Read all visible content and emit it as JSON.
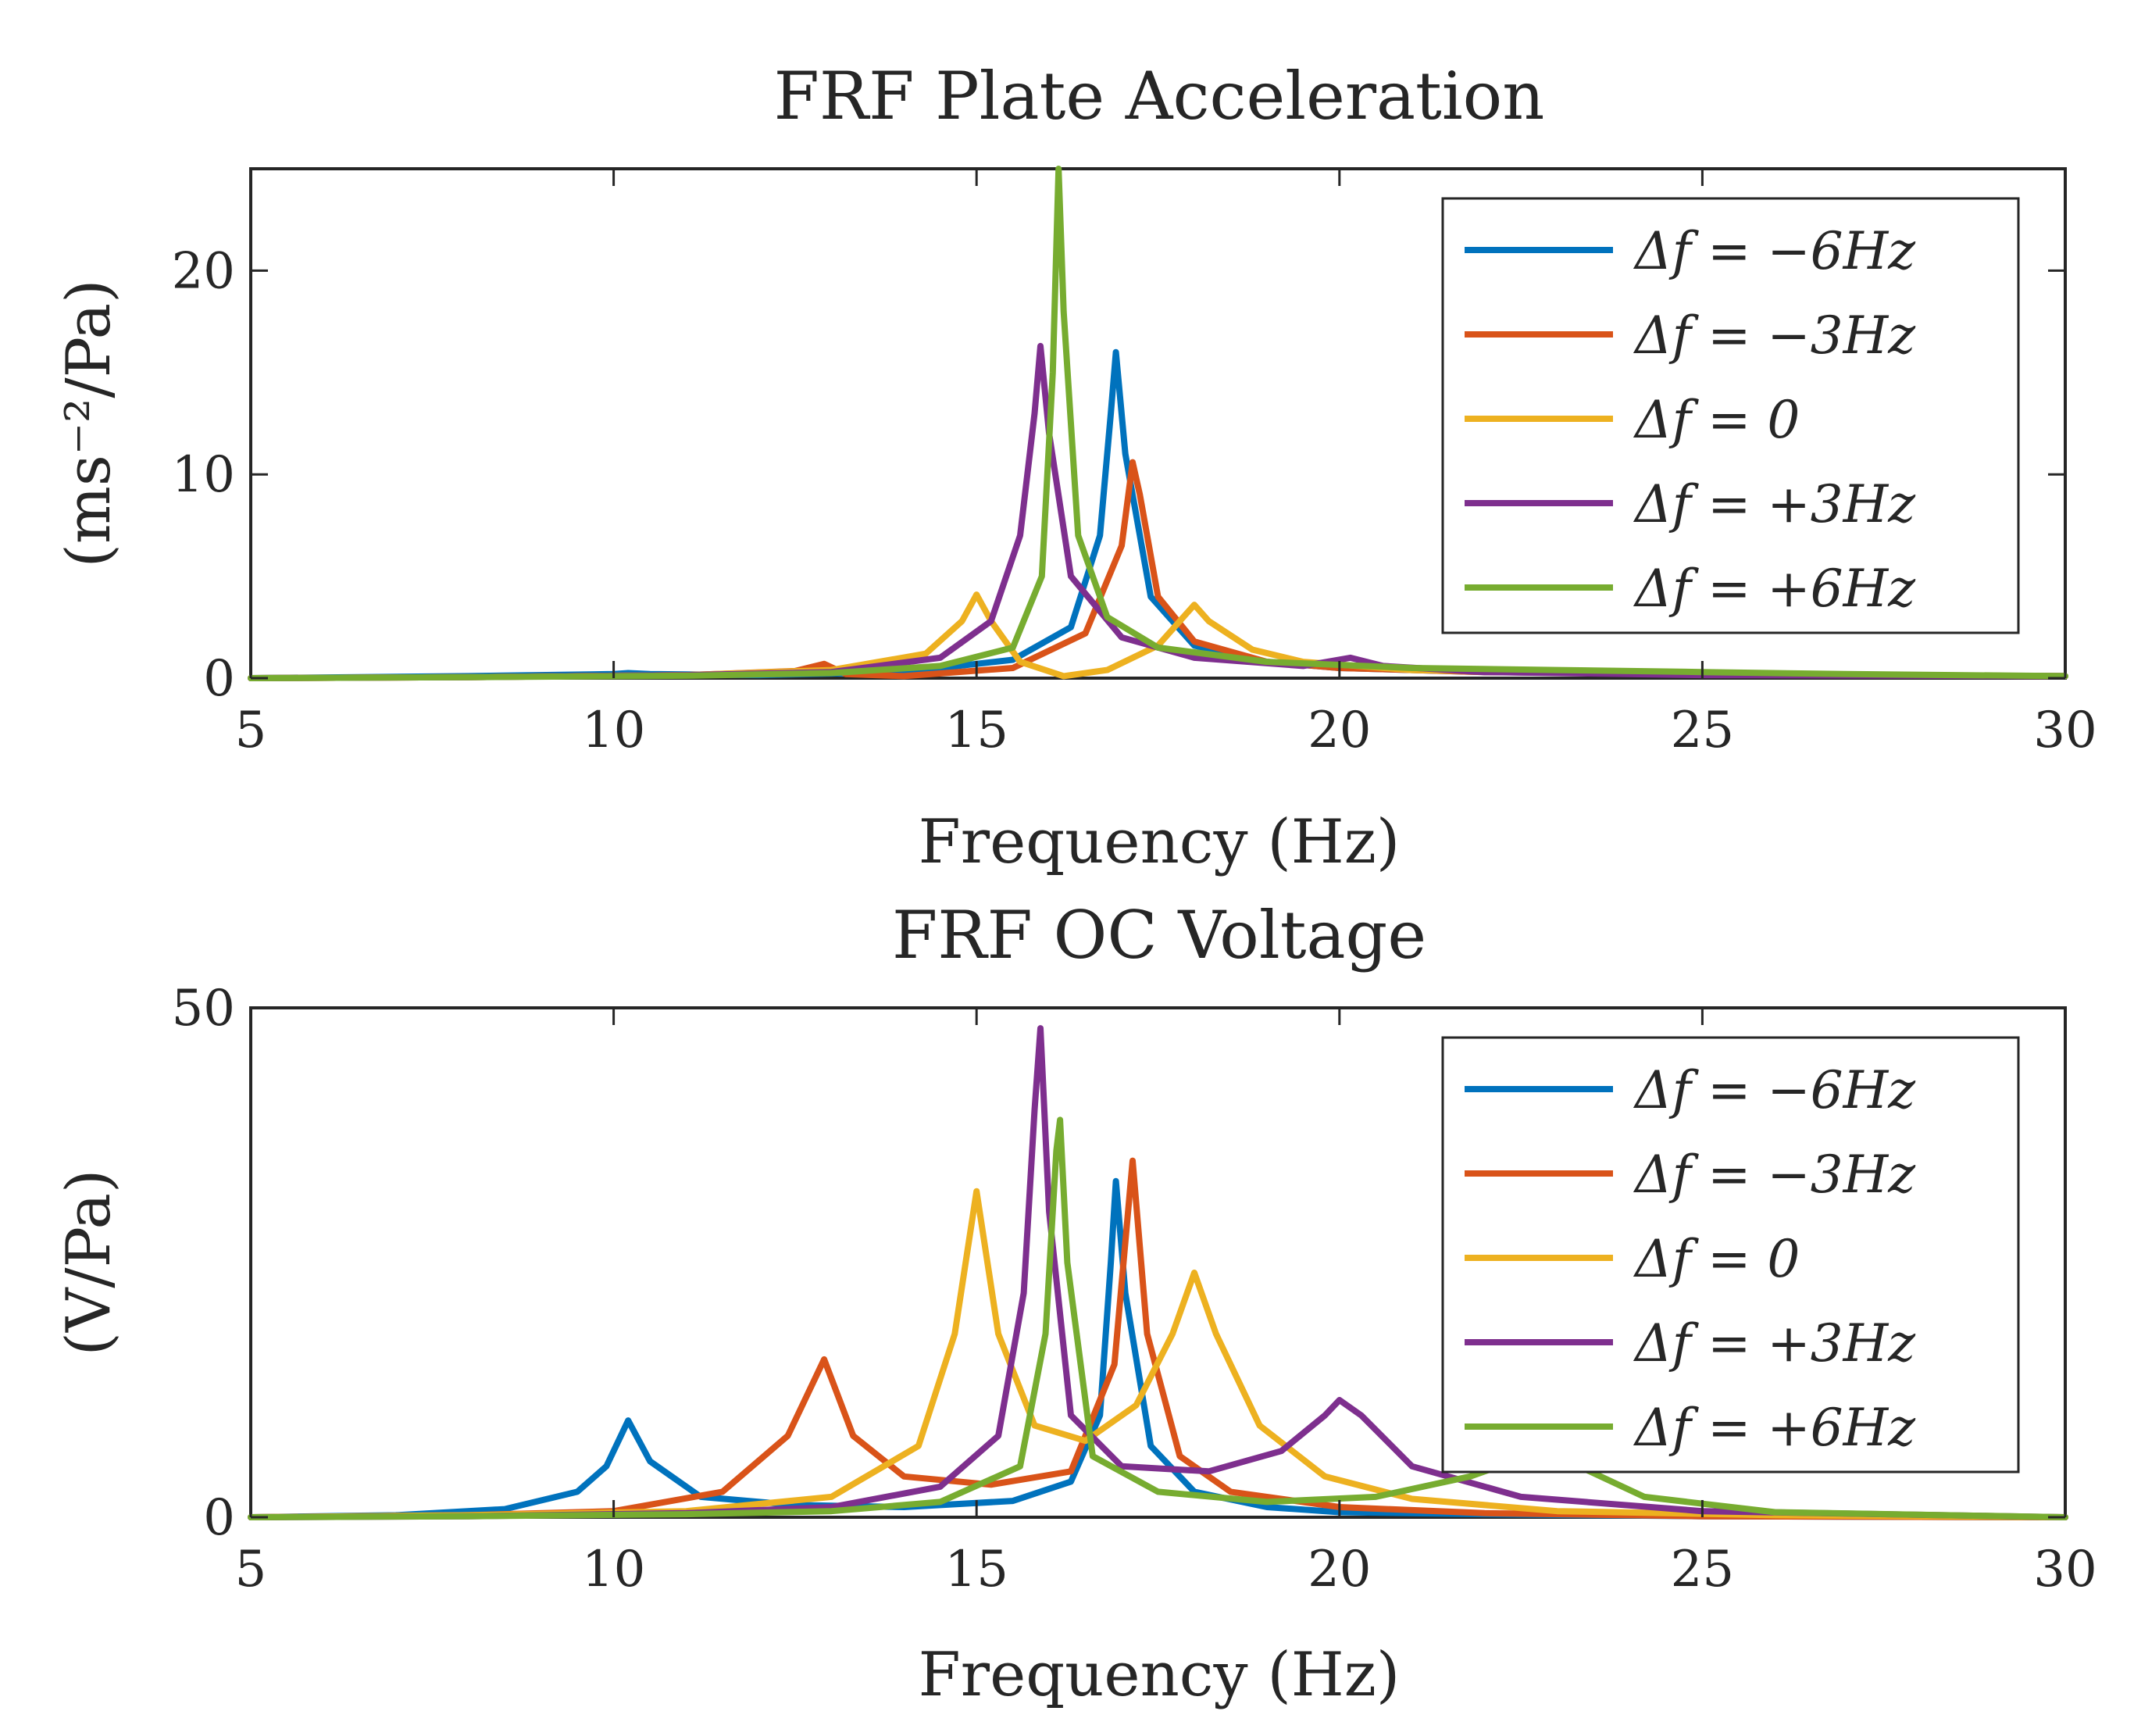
{
  "chart_data": [
    {
      "type": "line",
      "title": "FRF Plate Acceleration",
      "xlabel": "Frequency (Hz)",
      "ylabel": "(ms⁻²/Pa)",
      "xlim": [
        5,
        30
      ],
      "ylim": [
        0,
        25
      ],
      "xticks": [
        5,
        10,
        15,
        20,
        25,
        30
      ],
      "yticks": [
        0,
        10,
        20
      ],
      "grid": false,
      "legend_position": "top-right",
      "series": [
        {
          "name": "Δf = −6Hz",
          "color": "#0072BD",
          "x": [
            5,
            8,
            10,
            10.2,
            10.5,
            12,
            14,
            15.5,
            16.3,
            16.7,
            16.85,
            16.92,
            17.05,
            17.4,
            18,
            19,
            20,
            22,
            25,
            30
          ],
          "y": [
            0,
            0.1,
            0.2,
            0.25,
            0.2,
            0.15,
            0.3,
            0.9,
            2.5,
            7,
            13,
            16,
            11,
            4,
            1.6,
            0.8,
            0.5,
            0.3,
            0.2,
            0.1
          ]
        },
        {
          "name": "Δf = −3Hz",
          "color": "#D95319",
          "x": [
            5,
            8,
            11,
            12.5,
            12.9,
            13.2,
            14,
            15.5,
            16.5,
            17.0,
            17.15,
            17.25,
            17.5,
            18,
            19,
            20,
            22,
            25,
            30
          ],
          "y": [
            0,
            0.05,
            0.15,
            0.35,
            0.7,
            0.2,
            0.1,
            0.5,
            2.2,
            6.5,
            10.6,
            9,
            4,
            1.8,
            0.8,
            0.5,
            0.3,
            0.2,
            0.1
          ]
        },
        {
          "name": "Δf = 0",
          "color": "#EDB120",
          "x": [
            5,
            8,
            11,
            13,
            14.3,
            14.8,
            15.0,
            15.2,
            15.6,
            16.2,
            16.8,
            17.5,
            17.9,
            18.0,
            18.2,
            18.8,
            19.5,
            21,
            25,
            30
          ],
          "y": [
            0,
            0.05,
            0.15,
            0.4,
            1.2,
            2.8,
            4.1,
            2.8,
            0.8,
            0.1,
            0.4,
            1.6,
            3.2,
            3.6,
            2.8,
            1.4,
            0.8,
            0.4,
            0.2,
            0.1
          ]
        },
        {
          "name": "Δf = +3Hz",
          "color": "#7E2F8E",
          "x": [
            5,
            8,
            11,
            13,
            14.5,
            15.2,
            15.6,
            15.8,
            15.88,
            16.0,
            16.3,
            17,
            18,
            19.5,
            20.15,
            20.6,
            22,
            25,
            30
          ],
          "y": [
            0,
            0.05,
            0.15,
            0.3,
            1,
            2.8,
            7,
            13,
            16.3,
            12,
            5,
            2,
            1,
            0.6,
            1.0,
            0.6,
            0.3,
            0.15,
            0.1
          ]
        },
        {
          "name": "Δf = +6Hz",
          "color": "#77AC30",
          "x": [
            5,
            8,
            11,
            13,
            14.5,
            15.5,
            15.9,
            16.05,
            16.13,
            16.2,
            16.4,
            16.8,
            17.5,
            19,
            21,
            23,
            25,
            27,
            30
          ],
          "y": [
            0,
            0.05,
            0.12,
            0.25,
            0.6,
            1.5,
            5,
            15,
            25,
            18,
            7,
            3,
            1.5,
            0.8,
            0.5,
            0.4,
            0.3,
            0.2,
            0.1
          ]
        }
      ]
    },
    {
      "type": "line",
      "title": "FRF OC Voltage",
      "xlabel": "Frequency (Hz)",
      "ylabel": "(V/Pa)",
      "xlim": [
        5,
        30
      ],
      "ylim": [
        0,
        50
      ],
      "xticks": [
        5,
        10,
        15,
        20,
        25,
        30
      ],
      "yticks": [
        0,
        50
      ],
      "grid": false,
      "legend_position": "top-right",
      "series": [
        {
          "name": "Δf = −6Hz",
          "color": "#0072BD",
          "x": [
            5,
            7,
            8.5,
            9.5,
            9.9,
            10.2,
            10.5,
            11.2,
            12.5,
            14,
            15.5,
            16.3,
            16.7,
            16.85,
            16.92,
            17.05,
            17.4,
            18,
            19,
            20,
            22,
            25,
            30
          ],
          "y": [
            0,
            0.2,
            0.8,
            2.5,
            5,
            9.5,
            5.5,
            2,
            1.2,
            1,
            1.6,
            3.5,
            10,
            25,
            33,
            22,
            7,
            2.5,
            1,
            0.5,
            0.3,
            0.1,
            0
          ]
        },
        {
          "name": "Δf = −3Hz",
          "color": "#D95319",
          "x": [
            5,
            8,
            10,
            11.5,
            12.4,
            12.9,
            13.3,
            14,
            15.2,
            16.3,
            16.9,
            17.15,
            17.35,
            17.8,
            18.5,
            20,
            22,
            25,
            30
          ],
          "y": [
            0,
            0.2,
            0.6,
            2.5,
            8,
            15.5,
            8,
            4,
            3.2,
            4.5,
            15,
            35,
            18,
            6,
            2.5,
            1,
            0.4,
            0.1,
            0
          ]
        },
        {
          "name": "Δf = 0",
          "color": "#EDB120",
          "x": [
            5,
            8,
            11,
            13,
            14.2,
            14.7,
            15.0,
            15.3,
            15.8,
            16.5,
            17.2,
            17.7,
            18.0,
            18.3,
            18.9,
            19.8,
            21,
            23,
            26,
            30
          ],
          "y": [
            0,
            0.2,
            0.6,
            2,
            7,
            18,
            32,
            18,
            9,
            7.5,
            11,
            18,
            24,
            18,
            9,
            4,
            1.8,
            0.6,
            0.2,
            0
          ]
        },
        {
          "name": "Δf = +3Hz",
          "color": "#7E2F8E",
          "x": [
            5,
            8,
            11,
            13,
            14.5,
            15.3,
            15.65,
            15.8,
            15.88,
            16.0,
            16.3,
            17,
            18.2,
            19.2,
            19.8,
            20.0,
            20.3,
            21,
            22.5,
            25,
            30
          ],
          "y": [
            0,
            0.1,
            0.4,
            1,
            3,
            8,
            22,
            40,
            48,
            30,
            10,
            5,
            4.5,
            6.5,
            10,
            11.5,
            10,
            5,
            2,
            0.6,
            0
          ]
        },
        {
          "name": "Δf = +6Hz",
          "color": "#77AC30",
          "x": [
            5,
            8,
            11,
            13,
            14.5,
            15.6,
            15.95,
            16.1,
            16.15,
            16.25,
            16.6,
            17.5,
            19,
            20.5,
            21.8,
            22.6,
            23.3,
            24.2,
            26,
            30
          ],
          "y": [
            0,
            0.1,
            0.3,
            0.6,
            1.5,
            5,
            18,
            36,
            39,
            25,
            6,
            2.5,
            1.5,
            2,
            4,
            6,
            5,
            2,
            0.5,
            0
          ]
        }
      ]
    }
  ]
}
